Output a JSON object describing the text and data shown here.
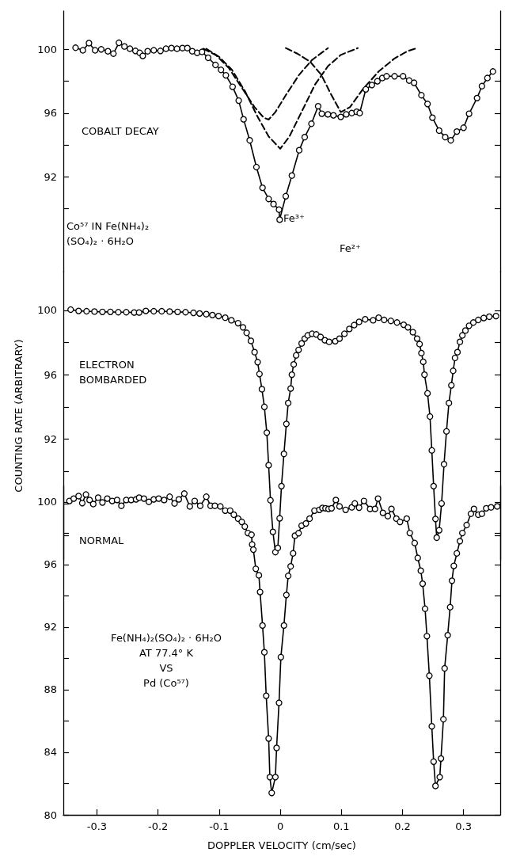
{
  "chart_data": [
    {
      "type": "line",
      "xlim": [
        -0.355,
        0.36
      ],
      "ylim": [
        86,
        102.4
      ],
      "yticks": [
        {
          "value": 90,
          "label": null
        },
        92,
        {
          "value": 94,
          "label": null
        },
        96,
        {
          "value": 98,
          "label": null
        },
        100
      ],
      "tick_labels": "y",
      "annotations": [
        "COBALT DECAY",
        "Co⁵⁷ IN Fe(NH₄)₂\n(SO₄)₂ · 6H₂O",
        "Fe³⁺",
        "Fe²⁺"
      ],
      "series": [
        {
          "color": "#000000",
          "marker": "none",
          "line_style": "dashed",
          "x": [
            -0.126,
            -0.105,
            -0.084,
            -0.063,
            -0.042,
            -0.027,
            -0.019,
            -0.008,
            0.01,
            0.031,
            0.052,
            0.078
          ],
          "values": [
            100.04,
            99.63,
            98.82,
            97.59,
            96.37,
            95.71,
            95.59,
            96.06,
            97.18,
            98.41,
            99.33,
            100.08
          ]
        },
        {
          "color": "#000000",
          "marker": "none",
          "line_style": "dashed",
          "x": [
            -0.121,
            -0.1,
            -0.079,
            -0.058,
            -0.037,
            -0.019,
            0.0,
            0.015,
            0.036,
            0.057,
            0.078,
            0.099,
            0.127
          ],
          "values": [
            100.04,
            99.53,
            98.71,
            97.39,
            95.76,
            94.53,
            93.76,
            94.53,
            96.16,
            97.8,
            98.94,
            99.65,
            100.08
          ]
        },
        {
          "color": "#000000",
          "marker": "none",
          "line_style": "dashed",
          "x": [
            0.009,
            0.028,
            0.049,
            0.067,
            0.083,
            0.099,
            0.114,
            0.135,
            0.161,
            0.187,
            0.208,
            0.224
          ],
          "values": [
            100.08,
            99.73,
            99.22,
            98.41,
            97.18,
            96.06,
            96.37,
            97.49,
            98.61,
            99.43,
            99.88,
            100.08
          ]
        },
        {
          "color": "#000000",
          "marker": "circle",
          "line_style": "solid",
          "x": [
            -0.335,
            -0.323,
            -0.313,
            -0.303,
            -0.293,
            -0.282,
            -0.273,
            -0.264,
            -0.255,
            -0.246,
            -0.237,
            -0.23,
            -0.225,
            -0.217,
            -0.207,
            -0.196,
            -0.187,
            -0.178,
            -0.169,
            -0.16,
            -0.152,
            -0.144,
            -0.136,
            -0.128,
            -0.118,
            -0.106,
            -0.097,
            -0.089,
            -0.078,
            -0.068,
            -0.06,
            -0.05,
            -0.039,
            -0.029,
            -0.019,
            -0.011,
            -0.002,
            -0.001,
            0.009,
            0.019,
            0.031,
            0.04,
            0.051,
            0.062,
            0.068,
            0.078,
            0.087,
            0.099,
            0.108,
            0.117,
            0.125,
            0.13,
            0.14,
            0.15,
            0.159,
            0.167,
            0.174,
            0.187,
            0.201,
            0.211,
            0.219,
            0.231,
            0.241,
            0.249,
            0.26,
            0.27,
            0.279,
            0.289,
            0.3,
            0.309,
            0.322,
            0.33,
            0.339,
            0.348
          ],
          "values": [
            100.1,
            99.94,
            100.39,
            99.94,
            100.0,
            99.88,
            99.73,
            100.41,
            100.18,
            100.04,
            99.9,
            99.78,
            99.59,
            99.88,
            99.94,
            99.9,
            100.04,
            100.08,
            100.04,
            100.08,
            100.08,
            99.88,
            99.78,
            99.84,
            99.47,
            99.02,
            98.71,
            98.37,
            97.65,
            96.78,
            95.61,
            94.29,
            92.61,
            91.31,
            90.61,
            90.29,
            89.94,
            89.31,
            90.78,
            92.08,
            93.67,
            94.49,
            95.33,
            96.43,
            95.96,
            95.92,
            95.86,
            95.76,
            95.92,
            96.0,
            96.08,
            96.0,
            97.49,
            97.76,
            98.0,
            98.2,
            98.31,
            98.31,
            98.31,
            98.04,
            97.9,
            97.12,
            96.57,
            95.71,
            94.9,
            94.49,
            94.29,
            94.84,
            95.08,
            95.96,
            96.94,
            97.69,
            98.2,
            98.61
          ]
        }
      ]
    },
    {
      "type": "line",
      "xlim": [
        -0.355,
        0.36
      ],
      "ylim": [
        84.5,
        102.4
      ],
      "yticks": [
        {
          "value": 86,
          "label": null
        },
        {
          "value": 88,
          "label": null
        },
        {
          "value": 90,
          "label": null
        },
        92,
        {
          "value": 94,
          "label": null
        },
        96,
        {
          "value": 98,
          "label": null
        },
        100
      ],
      "tick_labels": "y",
      "ylabel": "COUNTING RATE (ARBITRARY)",
      "annotations": [
        "ELECTRON\nBOMBARDED"
      ],
      "series": [
        {
          "color": "#000000",
          "marker": "circle",
          "line_style": "solid",
          "x": [
            -0.343,
            -0.33,
            -0.317,
            -0.304,
            -0.291,
            -0.278,
            -0.265,
            -0.252,
            -0.239,
            -0.231,
            -0.22,
            -0.207,
            -0.194,
            -0.181,
            -0.168,
            -0.155,
            -0.142,
            -0.132,
            -0.121,
            -0.111,
            -0.101,
            -0.09,
            -0.08,
            -0.069,
            -0.061,
            -0.055,
            -0.048,
            -0.042,
            -0.037,
            -0.034,
            -0.03,
            -0.026,
            -0.022,
            -0.019,
            -0.016,
            -0.012,
            -0.008,
            -0.004,
            -0.001,
            0.002,
            0.006,
            0.01,
            0.013,
            0.017,
            0.019,
            0.022,
            0.026,
            0.03,
            0.035,
            0.04,
            0.045,
            0.052,
            0.059,
            0.066,
            0.073,
            0.08,
            0.09,
            0.097,
            0.105,
            0.113,
            0.121,
            0.129,
            0.139,
            0.152,
            0.161,
            0.17,
            0.181,
            0.191,
            0.202,
            0.209,
            0.217,
            0.224,
            0.228,
            0.231,
            0.234,
            0.236,
            0.241,
            0.245,
            0.248,
            0.251,
            0.254,
            0.256,
            0.26,
            0.264,
            0.268,
            0.272,
            0.276,
            0.28,
            0.283,
            0.286,
            0.29,
            0.294,
            0.298,
            0.303,
            0.309,
            0.316,
            0.324,
            0.333,
            0.342,
            0.353
          ],
          "values": [
            100.04,
            99.96,
            99.94,
            99.92,
            99.9,
            99.9,
            99.88,
            99.88,
            99.86,
            99.86,
            99.96,
            99.94,
            99.94,
            99.92,
            99.9,
            99.88,
            99.84,
            99.8,
            99.76,
            99.7,
            99.64,
            99.54,
            99.38,
            99.2,
            98.94,
            98.6,
            98.1,
            97.4,
            96.78,
            96.04,
            95.1,
            94.0,
            92.4,
            90.38,
            88.2,
            86.24,
            84.98,
            85.24,
            87.08,
            89.08,
            91.08,
            92.94,
            94.24,
            95.14,
            96.0,
            96.64,
            97.2,
            97.54,
            97.94,
            98.24,
            98.44,
            98.54,
            98.5,
            98.34,
            98.14,
            98.04,
            98.08,
            98.24,
            98.54,
            98.84,
            99.08,
            99.28,
            99.44,
            99.38,
            99.54,
            99.4,
            99.34,
            99.24,
            99.1,
            98.94,
            98.64,
            98.24,
            97.9,
            97.34,
            96.8,
            96.0,
            94.84,
            93.4,
            91.3,
            89.08,
            87.04,
            85.88,
            86.34,
            88.0,
            90.44,
            92.48,
            94.24,
            95.34,
            96.24,
            97.04,
            97.4,
            98.04,
            98.44,
            98.74,
            99.04,
            99.24,
            99.4,
            99.52,
            99.6,
            99.64
          ]
        }
      ]
    },
    {
      "type": "line",
      "xlim": [
        -0.355,
        0.36
      ],
      "xticks": [
        -0.3,
        -0.2,
        -0.1,
        0,
        0.1,
        0.2,
        0.3
      ],
      "ylim": [
        80,
        101
      ],
      "yticks": [
        80,
        {
          "value": 82,
          "label": null
        },
        84,
        {
          "value": 86,
          "label": null
        },
        88,
        {
          "value": 90,
          "label": null
        },
        92,
        {
          "value": 94,
          "label": null
        },
        96,
        {
          "value": 98,
          "label": null
        },
        100
      ],
      "xlabel": "DOPPLER VELOCITY (cm/sec)",
      "annotations": [
        "NORMAL",
        "Fe(NH₄)₂(SO₄)₂ · 6H₂O\nAT  77.4° K\nVS\nPd (Co⁵⁷)"
      ],
      "series": [
        {
          "color": "#000000",
          "marker": "circle",
          "line_style": "solid",
          "x": [
            -0.345,
            -0.338,
            -0.33,
            -0.324,
            -0.318,
            -0.312,
            -0.306,
            -0.298,
            -0.291,
            -0.283,
            -0.275,
            -0.267,
            -0.26,
            -0.252,
            -0.244,
            -0.236,
            -0.231,
            -0.223,
            -0.215,
            -0.207,
            -0.199,
            -0.19,
            -0.181,
            -0.173,
            -0.166,
            -0.157,
            -0.148,
            -0.14,
            -0.131,
            -0.121,
            -0.114,
            -0.107,
            -0.098,
            -0.09,
            -0.082,
            -0.076,
            -0.069,
            -0.063,
            -0.058,
            -0.053,
            -0.047,
            -0.046,
            -0.044,
            -0.04,
            -0.035,
            -0.033,
            -0.029,
            -0.026,
            -0.023,
            -0.019,
            -0.017,
            -0.014,
            -0.008,
            -0.006,
            -0.002,
            0.001,
            0.006,
            0.01,
            0.013,
            0.017,
            0.021,
            0.024,
            0.03,
            0.035,
            0.042,
            0.048,
            0.056,
            0.064,
            0.069,
            0.074,
            0.079,
            0.084,
            0.091,
            0.097,
            0.107,
            0.117,
            0.122,
            0.129,
            0.137,
            0.147,
            0.155,
            0.16,
            0.168,
            0.176,
            0.182,
            0.19,
            0.196,
            0.207,
            0.212,
            0.22,
            0.225,
            0.23,
            0.233,
            0.237,
            0.24,
            0.244,
            0.248,
            0.251,
            0.254,
            0.261,
            0.263,
            0.267,
            0.269,
            0.274,
            0.278,
            0.281,
            0.284,
            0.289,
            0.294,
            0.298,
            0.305,
            0.312,
            0.317,
            0.324,
            0.33,
            0.337,
            0.345,
            0.355
          ],
          "values": [
            100.06,
            100.21,
            100.37,
            99.92,
            100.47,
            100.12,
            99.86,
            100.27,
            99.96,
            100.21,
            100.06,
            100.12,
            99.75,
            100.12,
            100.12,
            100.16,
            100.27,
            100.21,
            100.0,
            100.16,
            100.21,
            100.12,
            100.33,
            99.9,
            100.16,
            100.53,
            99.71,
            100.06,
            99.75,
            100.33,
            99.75,
            99.75,
            99.71,
            99.44,
            99.44,
            99.18,
            98.93,
            98.72,
            98.42,
            98.01,
            97.9,
            97.28,
            96.95,
            95.72,
            95.31,
            94.24,
            92.1,
            90.39,
            87.61,
            84.88,
            82.41,
            81.4,
            82.41,
            84.28,
            87.16,
            90.08,
            92.1,
            94.05,
            95.27,
            95.88,
            96.71,
            97.84,
            98.0,
            98.48,
            98.62,
            98.93,
            99.44,
            99.49,
            99.61,
            99.59,
            99.55,
            99.59,
            100.12,
            99.71,
            99.49,
            99.65,
            99.9,
            99.63,
            100.06,
            99.55,
            99.55,
            100.21,
            99.3,
            99.09,
            99.55,
            98.93,
            98.72,
            98.93,
            98.01,
            97.37,
            96.42,
            95.6,
            94.77,
            93.17,
            91.42,
            88.89,
            85.66,
            83.4,
            81.85,
            82.41,
            83.6,
            86.11,
            89.36,
            91.48,
            93.27,
            94.96,
            95.91,
            96.71,
            97.49,
            98.01,
            98.52,
            99.24,
            99.55,
            99.18,
            99.24,
            99.59,
            99.65,
            99.71
          ]
        }
      ]
    }
  ]
}
